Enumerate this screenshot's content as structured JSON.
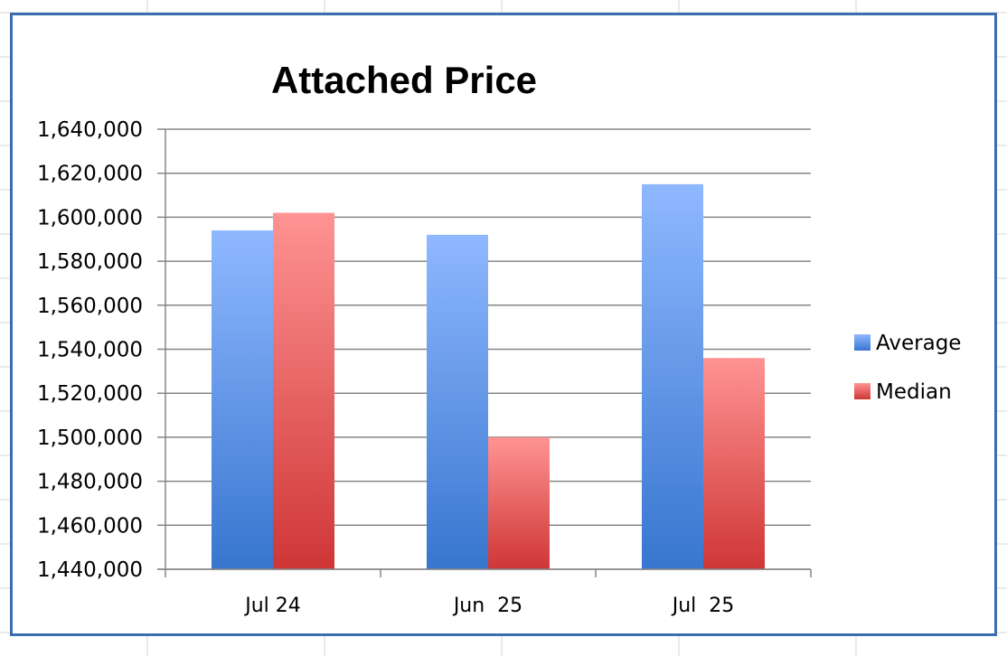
{
  "colors": {
    "gridline": "#868686",
    "sheet_grid": "#d4d4d4",
    "frame": "#3c6db0",
    "series_top": [
      "#8fb8ff",
      "#ff9393"
    ],
    "series_bottom": [
      "#3876cf",
      "#cf3636"
    ]
  },
  "chart_data": {
    "type": "bar",
    "title": "Attached Price",
    "xlabel": "",
    "ylabel": "",
    "categories": [
      "Jul 24",
      "Jun  25",
      "Jul  25"
    ],
    "series": [
      {
        "name": "Average",
        "values": [
          1594000,
          1592000,
          1615000
        ]
      },
      {
        "name": "Median",
        "values": [
          1602000,
          1500000,
          1536000
        ]
      }
    ],
    "ylim": [
      1440000,
      1640000
    ],
    "ytick_labels": [
      "1,640,000",
      "1,620,000",
      "1,600,000",
      "1,580,000",
      "1,560,000",
      "1,540,000",
      "1,520,000",
      "1,500,000",
      "1,480,000",
      "1,460,000",
      "1,440,000"
    ],
    "grid": true,
    "legend_position": "right"
  }
}
